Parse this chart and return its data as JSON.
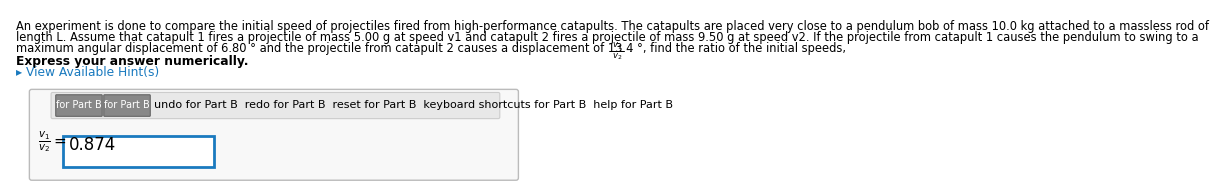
{
  "bg_color": "#ffffff",
  "text_color": "#000000",
  "hint_color": "#1a7abf",
  "input_border_color": "#1a7abf",
  "outer_box_edge": "#bbbbbb",
  "outer_box_face": "#f8f8f8",
  "toolbar_face": "#e8e8e8",
  "toolbar_edge": "#cccccc",
  "btn_face": "#888888",
  "btn_edge": "#666666",
  "line1": "An experiment is done to compare the initial speed of projectiles fired from high-performance catapults. The catapults are placed very close to a pendulum bob of mass 10.0 kg attached to a massless rod of",
  "line2": "length L. Assume that catapult 1 fires a projectile of mass 5.00 g at speed v1 and catapult 2 fires a projectile of mass 9.50 g at speed v2. If the projectile from catapult 1 causes the pendulum to swing to a",
  "line3": "maximum angular displacement of 6.80 ° and the projectile from catapult 2 causes a displacement of 13.4 °, find the ratio of the initial speeds,",
  "bold_text": "Express your answer numerically.",
  "hint_text": "▸ View Available Hint(s)",
  "toolbar_text": "undo for Part B  redo for Part B  reset for Part B  keyboard shortcuts for Part B  help for Part B",
  "btn1_text": "for Part B",
  "btn2_text": "for Part B",
  "input_value": "0.874",
  "font_size_body": 8.3,
  "font_size_bold": 8.8,
  "font_size_hint": 8.8,
  "font_size_toolbar": 8.0,
  "font_size_btn": 7.0,
  "font_size_value": 12.0,
  "font_size_label": 8.5
}
